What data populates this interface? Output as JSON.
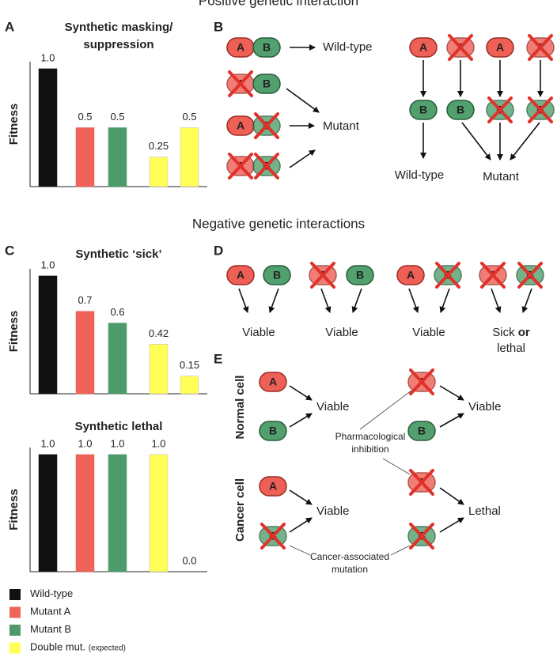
{
  "titles": {
    "positive": "Positive genetic interaction",
    "negative": "Negative genetic interactions"
  },
  "panel_labels": [
    "A",
    "B",
    "C",
    "D",
    "E"
  ],
  "genes": {
    "a": "A",
    "b": "B"
  },
  "chart_data": [
    {
      "type": "bar",
      "title": [
        "Synthetic masking/",
        "suppression"
      ],
      "ylabel": "Fitness",
      "categories": [
        null,
        null,
        null,
        null,
        null
      ],
      "values": [
        1.0,
        0.5,
        0.5,
        0.25,
        0.5
      ],
      "value_labels": [
        "1.0",
        "0.5",
        "0.5",
        "0.25",
        "0.5"
      ],
      "colors": [
        "#111111",
        "#f0635a",
        "#4e9a6b",
        "#ffff55",
        "#ffff55"
      ],
      "ylim": [
        0,
        1.06
      ]
    },
    {
      "type": "bar",
      "title": [
        "Synthetic ‘sick’"
      ],
      "ylabel": "Fitness",
      "categories": [
        null,
        null,
        null,
        null,
        null
      ],
      "values": [
        1.0,
        0.7,
        0.6,
        0.42,
        0.15
      ],
      "value_labels": [
        "1.0",
        "0.7",
        "0.6",
        "0.42",
        "0.15"
      ],
      "colors": [
        "#111111",
        "#f0635a",
        "#4e9a6b",
        "#ffff55",
        "#ffff55"
      ],
      "ylim": [
        0,
        1.06
      ]
    },
    {
      "type": "bar",
      "title": [
        "Synthetic lethal"
      ],
      "ylabel": "Fitness",
      "categories": [
        null,
        null,
        null,
        null,
        null
      ],
      "values": [
        1.0,
        1.0,
        1.0,
        1.0,
        0.0
      ],
      "value_labels": [
        "1.0",
        "1.0",
        "1.0",
        "1.0",
        "0.0"
      ],
      "colors": [
        "#111111",
        "#f0635a",
        "#4e9a6b",
        "#ffff55",
        "#777777"
      ],
      "ylim": [
        0,
        1.06
      ]
    }
  ],
  "legend": [
    {
      "label": "Wild-type",
      "color": "#111111"
    },
    {
      "label": "Mutant A",
      "color": "#f0635a"
    },
    {
      "label": "Mutant B",
      "color": "#4e9a6b"
    },
    {
      "label": "Double mut.",
      "note": "(expected)",
      "color": "#ffff55"
    }
  ],
  "panel_b": {
    "left_outcomes": [
      "Wild-type",
      "Mutant"
    ],
    "right_outcomes": [
      "Wild-type",
      "Mutant"
    ]
  },
  "panel_d": {
    "outcomes": [
      "Viable",
      "Viable",
      "Viable"
    ],
    "last": [
      "Sick",
      "or",
      "lethal"
    ]
  },
  "panel_e": {
    "rows": [
      "Normal cell",
      "Cancer cell"
    ],
    "outcomes": [
      "Viable",
      "Viable",
      "Viable",
      "Lethal"
    ],
    "notes": [
      [
        "Pharmacological",
        "inhibition"
      ],
      [
        "Cancer-associated",
        "mutation"
      ]
    ]
  }
}
